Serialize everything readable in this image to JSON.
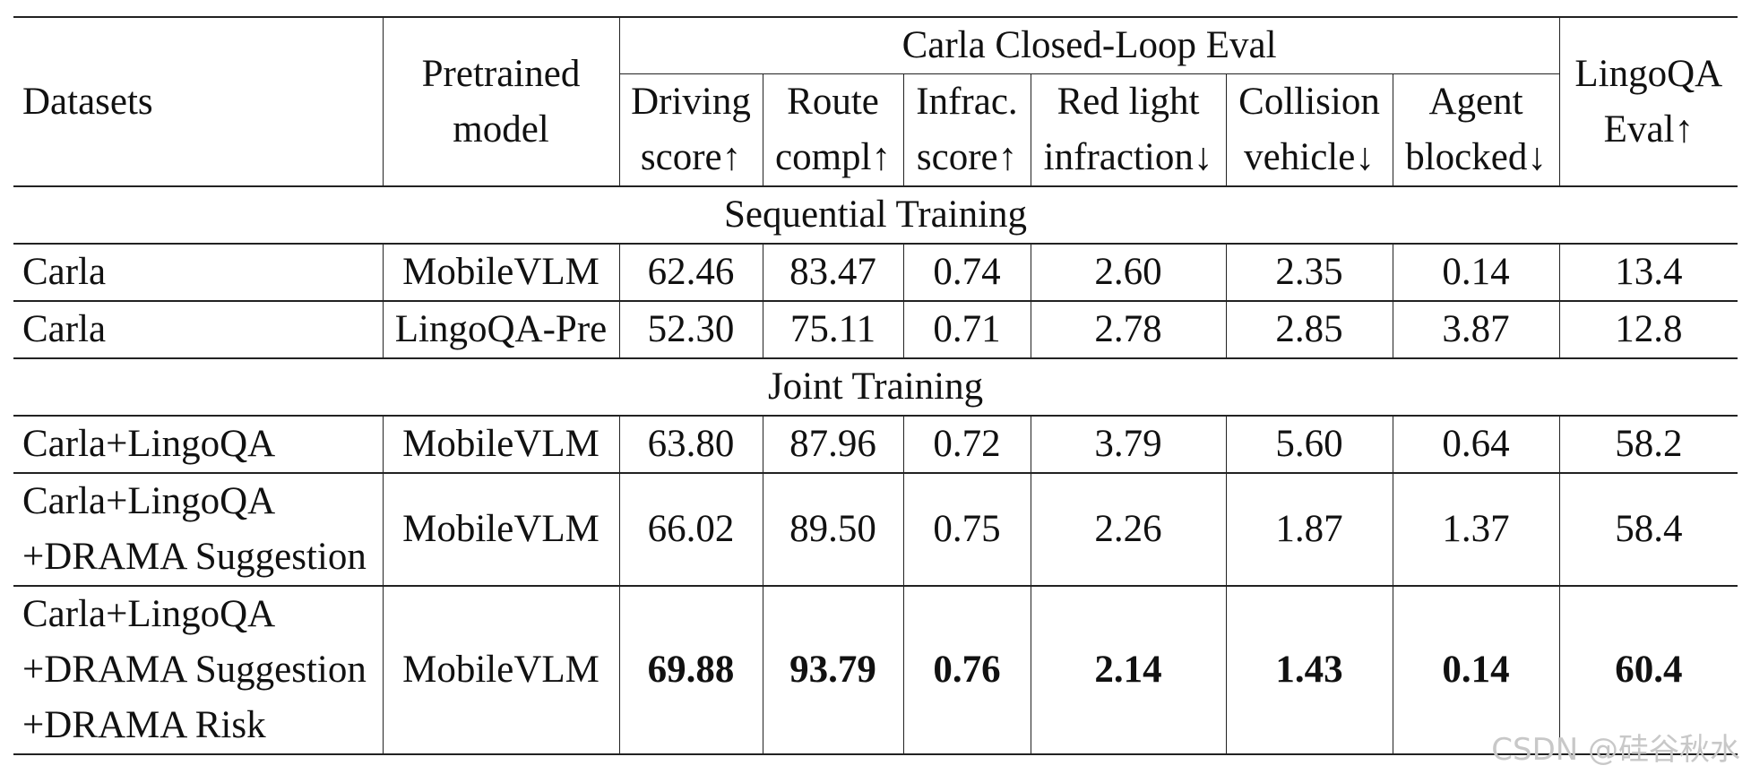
{
  "headers": {
    "datasets": "Datasets",
    "pretrained_line1": "Pretrained",
    "pretrained_line2": "model",
    "carla_group": "Carla Closed-Loop Eval",
    "lingoqa_line1": "LingoQA",
    "lingoqa_line2": "Eval↑",
    "sub": [
      {
        "line1": "Driving",
        "line2": "score↑"
      },
      {
        "line1": "Route",
        "line2": "compl↑"
      },
      {
        "line1": "Infrac.",
        "line2": "score↑"
      },
      {
        "line1": "Red light",
        "line2": "infraction↓"
      },
      {
        "line1": "Collision",
        "line2": "vehicle↓"
      },
      {
        "line1": "Agent",
        "line2": "blocked↓"
      }
    ]
  },
  "sections": {
    "sequential": "Sequential Training",
    "joint": "Joint Training"
  },
  "rows": [
    {
      "dataset": [
        "Carla"
      ],
      "model": "MobileVLM",
      "values": [
        "62.46",
        "83.47",
        "0.74",
        "2.60",
        "2.35",
        "0.14",
        "13.4"
      ],
      "bold": false
    },
    {
      "dataset": [
        "Carla"
      ],
      "model": "LingoQA-Pre",
      "values": [
        "52.30",
        "75.11",
        "0.71",
        "2.78",
        "2.85",
        "3.87",
        "12.8"
      ],
      "bold": false
    },
    {
      "dataset": [
        "Carla+LingoQA"
      ],
      "model": "MobileVLM",
      "values": [
        "63.80",
        "87.96",
        "0.72",
        "3.79",
        "5.60",
        "0.64",
        "58.2"
      ],
      "bold": false
    },
    {
      "dataset": [
        "Carla+LingoQA",
        "+DRAMA Suggestion"
      ],
      "model": "MobileVLM",
      "values": [
        "66.02",
        "89.50",
        "0.75",
        "2.26",
        "1.87",
        "1.37",
        "58.4"
      ],
      "bold": false
    },
    {
      "dataset": [
        "Carla+LingoQA",
        "+DRAMA Suggestion",
        "+DRAMA Risk"
      ],
      "model": "MobileVLM",
      "values": [
        "69.88",
        "93.79",
        "0.76",
        "2.14",
        "1.43",
        "0.14",
        "60.4"
      ],
      "bold": true
    }
  ],
  "watermark": "CSDN @硅谷秋水"
}
